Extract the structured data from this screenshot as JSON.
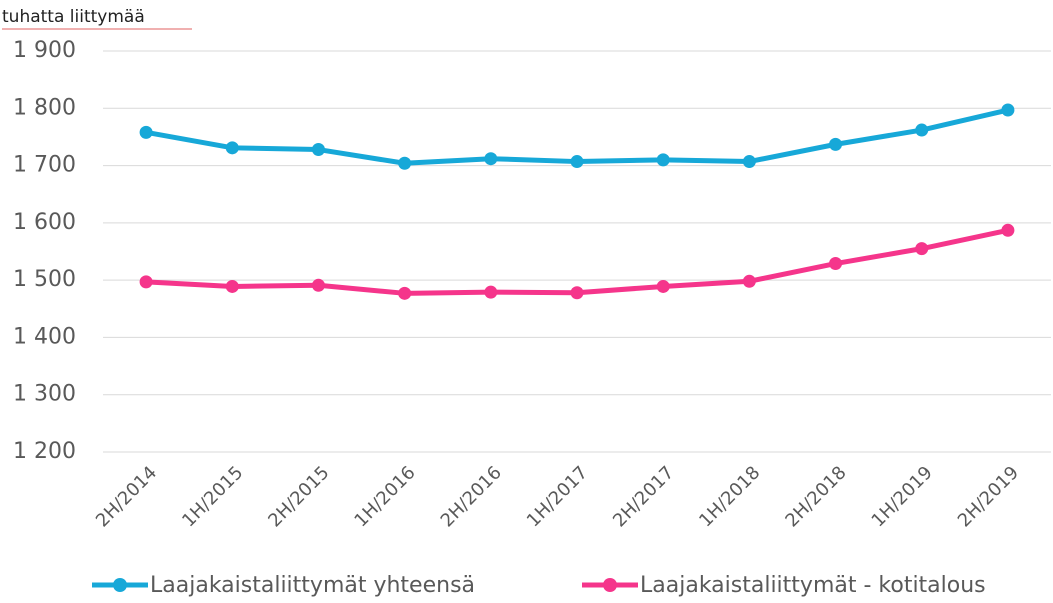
{
  "chart_data": {
    "type": "line",
    "y_label": "tuhatta liittymää",
    "categories": [
      "2H/2014",
      "1H/2015",
      "2H/2015",
      "1H/2016",
      "2H/2016",
      "1H/2017",
      "2H/2017",
      "1H/2018",
      "2H/2018",
      "1H/2019",
      "2H/2019"
    ],
    "series": [
      {
        "name": "Laajakaistaliittymät yhteensä",
        "color": "#17a8d8",
        "values": [
          1758,
          1731,
          1728,
          1704,
          1712,
          1707,
          1710,
          1707,
          1737,
          1762,
          1797
        ]
      },
      {
        "name": "Laajakaistaliittymät - kotitalous",
        "color": "#f5358b",
        "values": [
          1497,
          1489,
          1491,
          1477,
          1479,
          1478,
          1489,
          1498,
          1529,
          1555,
          1587
        ]
      }
    ],
    "ylim": [
      1200,
      1900
    ],
    "yticks": [
      {
        "value": 1200,
        "label": "1 200"
      },
      {
        "value": 1300,
        "label": "1 300"
      },
      {
        "value": 1400,
        "label": "1 400"
      },
      {
        "value": 1500,
        "label": "1 500"
      },
      {
        "value": 1600,
        "label": "1 600"
      },
      {
        "value": 1700,
        "label": "1 700"
      },
      {
        "value": 1800,
        "label": "1 800"
      },
      {
        "value": 1900,
        "label": "1 900"
      }
    ],
    "grid": true,
    "legend": "bottom"
  }
}
